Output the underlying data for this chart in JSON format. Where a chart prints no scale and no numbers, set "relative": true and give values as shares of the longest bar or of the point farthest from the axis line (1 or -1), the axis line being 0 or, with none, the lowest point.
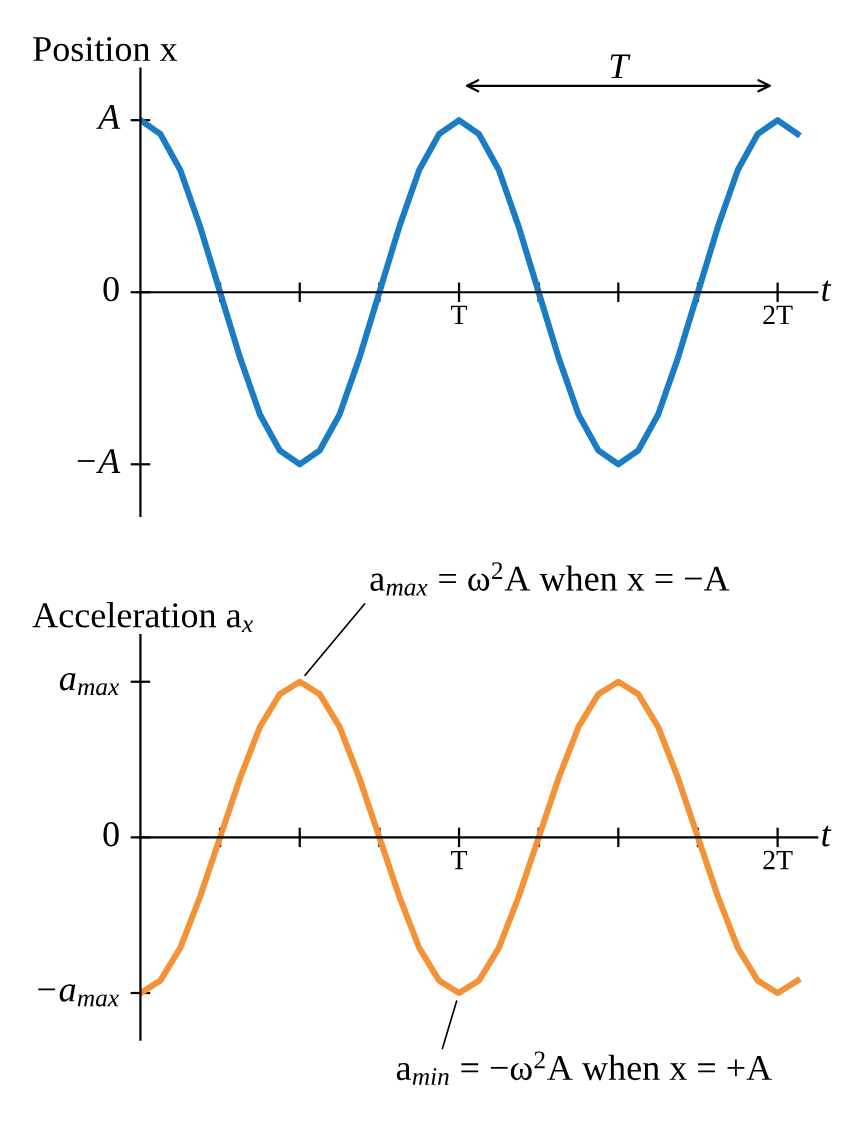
{
  "chart_data": [
    {
      "type": "line",
      "ylabel": "Position x",
      "xlabel": "t",
      "relative": true,
      "categories": [
        null,
        null,
        null,
        null,
        null,
        null,
        null,
        null,
        null,
        null,
        null,
        null,
        null,
        null,
        null,
        null,
        "T",
        null,
        null,
        null,
        null,
        null,
        null,
        null,
        null,
        null,
        null,
        null,
        null,
        null,
        null,
        null,
        "2T",
        null
      ],
      "series": [
        {
          "color": "#1a7dc4",
          "values": [
            1,
            0.92,
            0.71,
            0.38,
            0,
            -0.38,
            -0.71,
            -0.92,
            -1,
            -0.92,
            -0.71,
            -0.38,
            0,
            0.38,
            0.71,
            0.92,
            1,
            0.92,
            0.71,
            0.38,
            0,
            -0.38,
            -0.71,
            -0.92,
            -1,
            -0.92,
            -0.71,
            -0.38,
            0,
            0.38,
            0.71,
            0.92,
            1,
            0.92
          ]
        }
      ],
      "annotations": [
        "A",
        "0",
        "−A",
        "T"
      ],
      "grid": false,
      "marker": "none",
      "line_style": "solid"
    },
    {
      "type": "line",
      "ylabel": "Acceleration a$_{x}$",
      "xlabel": "t",
      "relative": true,
      "categories": [
        null,
        null,
        null,
        null,
        null,
        null,
        null,
        null,
        null,
        null,
        null,
        null,
        null,
        null,
        null,
        null,
        "T",
        null,
        null,
        null,
        null,
        null,
        null,
        null,
        null,
        null,
        null,
        null,
        null,
        null,
        null,
        null,
        "2T",
        null
      ],
      "series": [
        {
          "color": "#f39237",
          "values": [
            -1,
            -0.92,
            -0.71,
            -0.38,
            0,
            0.38,
            0.71,
            0.92,
            1,
            0.92,
            0.71,
            0.38,
            0,
            -0.38,
            -0.71,
            -0.92,
            -1,
            -0.92,
            -0.71,
            -0.38,
            0,
            0.38,
            0.71,
            0.92,
            1,
            0.92,
            0.71,
            0.38,
            0,
            -0.38,
            -0.71,
            -0.92,
            -1,
            -0.92
          ]
        }
      ],
      "annotations": [
        "a$_{max}$",
        "0",
        "−a$_{max}$",
        "a$_{max}$ = ω$^{2}$A when x = −A",
        "a$_{min}$ = −ω$^{2}$A when x = +A"
      ],
      "grid": false,
      "marker": "none",
      "line_style": "solid"
    }
  ]
}
